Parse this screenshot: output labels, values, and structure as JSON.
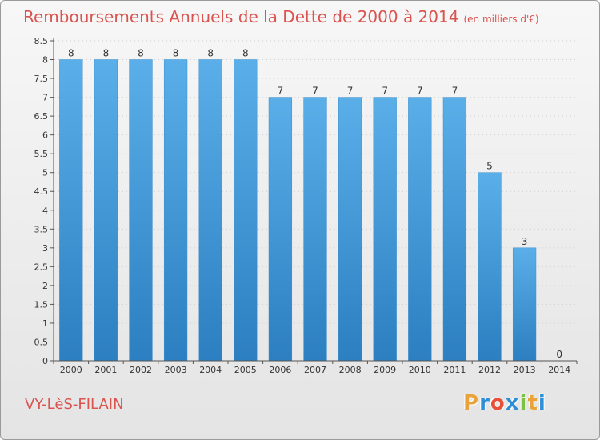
{
  "title": "Remboursements Annuels de la Dette de 2000 à 2014",
  "subtitle": "(en milliers d'€)",
  "town": "VY-LèS-FILAIN",
  "logo": {
    "letters": [
      "P",
      "r",
      "o",
      "x",
      "i",
      "t",
      "i"
    ],
    "colors": [
      "#e8a33a",
      "#2f8fd6",
      "#e8503a",
      "#2f8fd6",
      "#7cc242",
      "#e8a33a",
      "#2f8fd6"
    ]
  },
  "chart_data": {
    "type": "bar",
    "categories": [
      "2000",
      "2001",
      "2002",
      "2003",
      "2004",
      "2005",
      "2006",
      "2007",
      "2008",
      "2009",
      "2010",
      "2011",
      "2012",
      "2013",
      "2014"
    ],
    "values": [
      8,
      8,
      8,
      8,
      8,
      8,
      7,
      7,
      7,
      7,
      7,
      7,
      5,
      3,
      0
    ],
    "value_labels": [
      "8",
      "8",
      "8",
      "8",
      "8",
      "8",
      "7",
      "7",
      "7",
      "7",
      "7",
      "7",
      "5",
      "3",
      "0"
    ],
    "yticks": [
      0,
      0.5,
      1,
      1.5,
      2,
      2.5,
      3,
      3.5,
      4,
      4.5,
      5,
      5.5,
      6,
      6.5,
      7,
      7.5,
      8,
      8.5
    ],
    "ytick_labels": [
      "0",
      "0.5",
      "1",
      "1.5",
      "2",
      "2.5",
      "3",
      "3.5",
      "4",
      "4.5",
      "5",
      "5.5",
      "6",
      "6.5",
      "7",
      "7.5",
      "8",
      "8.5"
    ],
    "ylim": [
      0,
      8.5
    ],
    "grid": "horizontal",
    "colors": {
      "bar_top": "#5aafe9",
      "bar_bottom": "#2c7fc0",
      "axis": "#555555"
    }
  }
}
